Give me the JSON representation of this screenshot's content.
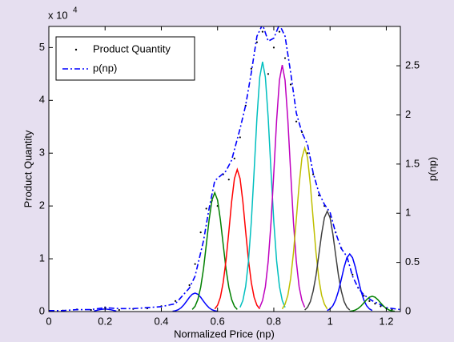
{
  "chart_data": {
    "type": "line",
    "x_label": "Normalized  Price (np)",
    "y_label": "Product Quantity",
    "y2_label": "p(np)",
    "y_multiplier": {
      "base": "x 10",
      "exponent": "4"
    },
    "xlim": [
      0,
      1.25
    ],
    "xticks": [
      0,
      0.2,
      0.4,
      0.6,
      0.8,
      1,
      1.2
    ],
    "ylim": [
      0,
      5.4
    ],
    "yticks": [
      0,
      1,
      2,
      3,
      4,
      5
    ],
    "y2lim": [
      0,
      2.9
    ],
    "y2ticks": [
      0,
      0.5,
      1,
      1.5,
      2,
      2.5
    ],
    "legend": "upper-left",
    "series": [
      {
        "name": "Product Quantity",
        "color": "#000000",
        "style": "dots",
        "x": [
          0.05,
          0.1,
          0.15,
          0.2,
          0.25,
          0.3,
          0.35,
          0.4,
          0.45,
          0.5,
          0.52,
          0.54,
          0.56,
          0.58,
          0.6,
          0.62,
          0.64,
          0.66,
          0.68,
          0.7,
          0.72,
          0.74,
          0.76,
          0.78,
          0.8,
          0.82,
          0.84,
          0.86,
          0.88,
          0.9,
          0.92,
          0.94,
          0.96,
          0.98,
          1.0,
          1.02,
          1.04,
          1.06,
          1.08,
          1.1,
          1.12,
          1.14,
          1.16,
          1.18,
          1.2,
          1.22
        ],
        "values": [
          0.02,
          0.04,
          0.03,
          0.08,
          0.03,
          0.05,
          0.06,
          0.1,
          0.2,
          0.5,
          0.9,
          1.5,
          1.95,
          2.1,
          2.0,
          2.6,
          2.5,
          2.9,
          3.3,
          3.9,
          4.6,
          5.1,
          5.3,
          4.5,
          5.0,
          5.3,
          4.8,
          4.3,
          3.6,
          3.4,
          3.0,
          2.6,
          2.2,
          2.0,
          1.8,
          1.5,
          1.2,
          1.0,
          0.7,
          0.45,
          0.3,
          0.2,
          0.15,
          0.1,
          0.06,
          0.04
        ]
      },
      {
        "name": "p(np)",
        "color": "#0000ff",
        "style": "dashdot",
        "axis": "y2",
        "x": [
          0,
          0.05,
          0.1,
          0.15,
          0.2,
          0.25,
          0.3,
          0.35,
          0.4,
          0.45,
          0.5,
          0.52,
          0.55,
          0.57,
          0.59,
          0.61,
          0.63,
          0.65,
          0.68,
          0.7,
          0.72,
          0.74,
          0.76,
          0.78,
          0.8,
          0.82,
          0.84,
          0.86,
          0.88,
          0.9,
          0.92,
          0.94,
          0.96,
          0.98,
          1.0,
          1.02,
          1.04,
          1.06,
          1.08,
          1.1,
          1.12,
          1.15,
          1.18,
          1.2,
          1.25
        ],
        "values": [
          0.01,
          0.01,
          0.02,
          0.02,
          0.04,
          0.03,
          0.03,
          0.04,
          0.05,
          0.08,
          0.24,
          0.36,
          0.72,
          1.05,
          1.33,
          1.38,
          1.43,
          1.54,
          1.86,
          2.1,
          2.43,
          2.8,
          2.92,
          2.75,
          2.78,
          2.92,
          2.8,
          2.43,
          2.02,
          1.82,
          1.7,
          1.41,
          1.21,
          1.09,
          1.01,
          0.8,
          0.64,
          0.56,
          0.36,
          0.24,
          0.17,
          0.11,
          0.07,
          0.04,
          0.02
        ]
      },
      {
        "color": "#0000ff",
        "style": "solid",
        "x": [
          0.16,
          0.18,
          0.2,
          0.22,
          0.24
        ],
        "values": [
          0.01,
          0.035,
          0.05,
          0.035,
          0.01
        ]
      },
      {
        "color": "#0000ff",
        "style": "solid",
        "x": [
          0.44,
          0.45,
          0.46,
          0.47,
          0.48,
          0.49,
          0.5,
          0.51,
          0.52,
          0.53,
          0.54,
          0.55,
          0.56,
          0.57,
          0.58,
          0.59,
          0.6
        ],
        "values": [
          0.006,
          0.015,
          0.035,
          0.071,
          0.126,
          0.197,
          0.271,
          0.328,
          0.35,
          0.328,
          0.271,
          0.197,
          0.126,
          0.071,
          0.035,
          0.015,
          0.006
        ]
      },
      {
        "color": "#008000",
        "style": "solid",
        "x": [
          0.51,
          0.52,
          0.53,
          0.54,
          0.55,
          0.56,
          0.57,
          0.58,
          0.59,
          0.6,
          0.61,
          0.62,
          0.63,
          0.64,
          0.65,
          0.66,
          0.67
        ],
        "values": [
          0.04,
          0.1,
          0.23,
          0.46,
          0.81,
          1.27,
          1.74,
          2.11,
          2.25,
          2.11,
          1.74,
          1.27,
          0.81,
          0.46,
          0.23,
          0.1,
          0.04
        ]
      },
      {
        "color": "#ff0000",
        "style": "solid",
        "x": [
          0.59,
          0.6,
          0.61,
          0.62,
          0.63,
          0.64,
          0.65,
          0.66,
          0.67,
          0.68,
          0.69,
          0.7,
          0.71,
          0.72,
          0.73,
          0.74,
          0.75
        ],
        "values": [
          0.05,
          0.12,
          0.27,
          0.55,
          0.97,
          1.51,
          2.08,
          2.52,
          2.69,
          2.52,
          2.08,
          1.51,
          0.97,
          0.55,
          0.27,
          0.12,
          0.05
        ]
      },
      {
        "color": "#00bfbf",
        "style": "solid",
        "x": [
          0.68,
          0.69,
          0.7,
          0.71,
          0.72,
          0.73,
          0.74,
          0.75,
          0.76,
          0.77,
          0.78,
          0.79,
          0.8,
          0.81,
          0.82,
          0.83,
          0.84
        ],
        "values": [
          0.08,
          0.21,
          0.48,
          0.96,
          1.7,
          2.66,
          3.67,
          4.44,
          4.73,
          4.44,
          3.67,
          2.66,
          1.7,
          0.96,
          0.48,
          0.21,
          0.08
        ]
      },
      {
        "color": "#bf00bf",
        "style": "solid",
        "x": [
          0.75,
          0.76,
          0.77,
          0.78,
          0.79,
          0.8,
          0.81,
          0.82,
          0.83,
          0.84,
          0.85,
          0.86,
          0.87,
          0.88,
          0.89,
          0.9,
          0.91
        ],
        "values": [
          0.08,
          0.21,
          0.47,
          0.95,
          1.68,
          2.63,
          3.62,
          4.38,
          4.67,
          4.38,
          3.62,
          2.63,
          1.68,
          0.95,
          0.47,
          0.21,
          0.08
        ]
      },
      {
        "color": "#bfbf00",
        "style": "solid",
        "x": [
          0.83,
          0.84,
          0.85,
          0.86,
          0.87,
          0.88,
          0.89,
          0.9,
          0.91,
          0.92,
          0.93,
          0.94,
          0.95,
          0.96,
          0.97,
          0.98,
          0.99
        ],
        "values": [
          0.05,
          0.14,
          0.31,
          0.63,
          1.12,
          1.75,
          2.4,
          2.91,
          3.1,
          2.91,
          2.4,
          1.75,
          1.12,
          0.63,
          0.31,
          0.14,
          0.05
        ]
      },
      {
        "color": "#404040",
        "style": "solid",
        "x": [
          0.91,
          0.92,
          0.93,
          0.94,
          0.95,
          0.96,
          0.97,
          0.98,
          0.99,
          1.0,
          1.01,
          1.02,
          1.03,
          1.04,
          1.05,
          1.06,
          1.07
        ],
        "values": [
          0.03,
          0.08,
          0.19,
          0.39,
          0.68,
          1.07,
          1.47,
          1.78,
          1.9,
          1.78,
          1.47,
          1.07,
          0.68,
          0.39,
          0.19,
          0.08,
          0.03
        ]
      },
      {
        "color": "#0000ff",
        "style": "solid",
        "x": [
          0.99,
          1.0,
          1.01,
          1.02,
          1.03,
          1.04,
          1.05,
          1.06,
          1.07,
          1.08,
          1.09,
          1.1,
          1.11,
          1.12,
          1.13,
          1.14,
          1.15
        ],
        "values": [
          0.02,
          0.05,
          0.11,
          0.22,
          0.39,
          0.61,
          0.84,
          1.02,
          1.09,
          1.02,
          0.84,
          0.61,
          0.39,
          0.22,
          0.11,
          0.05,
          0.02
        ]
      },
      {
        "color": "#008000",
        "style": "solid",
        "x": [
          1.07,
          1.08,
          1.09,
          1.1,
          1.11,
          1.12,
          1.13,
          1.14,
          1.15,
          1.16,
          1.17,
          1.18,
          1.19,
          1.2,
          1.21,
          1.22,
          1.23
        ],
        "values": [
          0.005,
          0.013,
          0.029,
          0.059,
          0.104,
          0.163,
          0.225,
          0.272,
          0.29,
          0.272,
          0.225,
          0.163,
          0.104,
          0.059,
          0.029,
          0.013,
          0.005
        ]
      }
    ]
  }
}
